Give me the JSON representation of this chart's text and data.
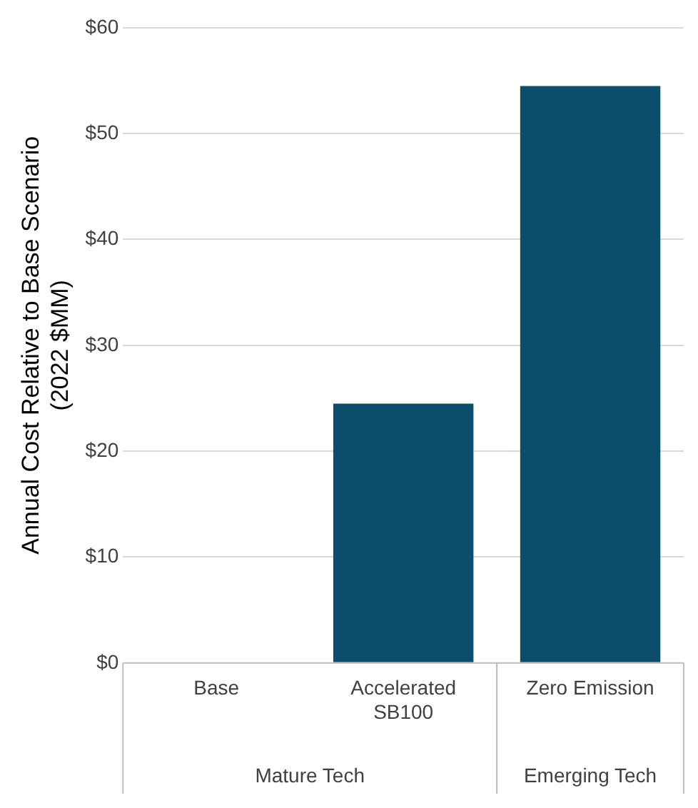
{
  "chart_data": {
    "type": "bar",
    "ylabel": "Annual Cost Relative to Base Scenario (2022 $MM)",
    "categories": [
      "Base",
      "Accelerated SB100",
      "Zero Emission"
    ],
    "values": [
      0,
      24.5,
      54.5
    ],
    "color": "#0b4d6b",
    "ylim": [
      0,
      60
    ],
    "yticks": [
      {
        "value": 0,
        "label": "$0"
      },
      {
        "value": 10,
        "label": "$10"
      },
      {
        "value": 20,
        "label": "$20"
      },
      {
        "value": 30,
        "label": "$30"
      },
      {
        "value": 40,
        "label": "$40"
      },
      {
        "value": 50,
        "label": "$50"
      },
      {
        "value": 60,
        "label": "$60"
      }
    ],
    "grid": "y",
    "legend": false,
    "annotations": [
      "Mature Tech",
      "Emerging Tech"
    ]
  }
}
